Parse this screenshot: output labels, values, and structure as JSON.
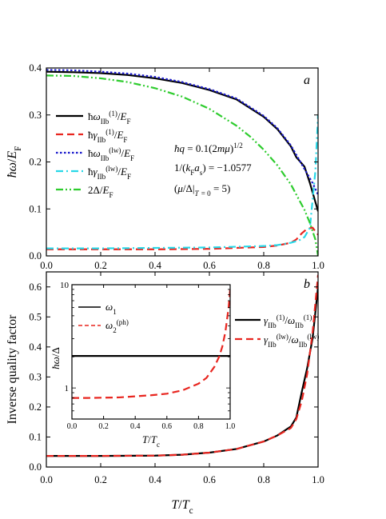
{
  "chart_data": [
    {
      "type": "line",
      "panel_label": "a",
      "xlabel": "",
      "ylabel": "ħω/E_F",
      "xlim": [
        0.0,
        1.0
      ],
      "ylim": [
        0.0,
        0.4
      ],
      "xticks": [
        "0.0",
        "0.2",
        "0.4",
        "0.6",
        "0.8",
        "1.0"
      ],
      "yticks": [
        "0.0",
        "0.1",
        "0.2",
        "0.3",
        "0.4"
      ],
      "annotations": {
        "line1": "ħq = 0.1(2mμ)^1/2",
        "line2": "1/(k_F a_s) = −1.0577",
        "line3": "(μ/Δ|_T=0 = 5)"
      },
      "series": [
        {
          "name": "ħω_IIb^(1)/E_F",
          "color": "#000000",
          "dash": "solid",
          "x": [
            0,
            0.1,
            0.2,
            0.3,
            0.4,
            0.5,
            0.6,
            0.7,
            0.8,
            0.85,
            0.9,
            0.92,
            0.95,
            0.97,
            1.0
          ],
          "y": [
            0.392,
            0.391,
            0.389,
            0.385,
            0.378,
            0.368,
            0.353,
            0.333,
            0.296,
            0.27,
            0.233,
            0.21,
            0.19,
            0.155,
            0.095
          ]
        },
        {
          "name": "ħγ_IIb^(1)/E_F",
          "color": "#e8251f",
          "dash": "dash",
          "x": [
            0,
            0.2,
            0.4,
            0.6,
            0.8,
            0.85,
            0.9,
            0.92,
            0.94,
            0.96,
            0.98,
            1.0
          ],
          "y": [
            0.014,
            0.014,
            0.014,
            0.015,
            0.019,
            0.022,
            0.028,
            0.035,
            0.048,
            0.058,
            0.06,
            0.045
          ]
        },
        {
          "name": "ħω_IIb^(lw)/E_F",
          "color": "#1a1acc",
          "dash": "dot",
          "x": [
            0,
            0.1,
            0.2,
            0.3,
            0.4,
            0.5,
            0.6,
            0.7,
            0.8,
            0.85,
            0.9,
            0.93,
            0.96,
            0.98,
            1.0
          ],
          "y": [
            0.396,
            0.395,
            0.392,
            0.388,
            0.381,
            0.37,
            0.355,
            0.335,
            0.298,
            0.272,
            0.235,
            0.205,
            0.175,
            0.155,
            0.13
          ]
        },
        {
          "name": "ħγ_IIb^(lw)/E_F",
          "color": "#28d8e8",
          "dash": "dashdot",
          "x": [
            0,
            0.2,
            0.4,
            0.6,
            0.8,
            0.85,
            0.9,
            0.93,
            0.95,
            0.97,
            0.99,
            1.0
          ],
          "y": [
            0.016,
            0.016,
            0.017,
            0.018,
            0.021,
            0.023,
            0.028,
            0.033,
            0.04,
            0.06,
            0.18,
            0.3
          ]
        },
        {
          "name": "2Δ/E_F",
          "color": "#2ecc2e",
          "dash": "dashdotdot",
          "x": [
            0,
            0.1,
            0.2,
            0.3,
            0.4,
            0.5,
            0.6,
            0.7,
            0.75,
            0.8,
            0.85,
            0.9,
            0.95,
            0.97,
            0.99,
            1.0
          ],
          "y": [
            0.384,
            0.383,
            0.378,
            0.37,
            0.357,
            0.339,
            0.313,
            0.277,
            0.254,
            0.226,
            0.193,
            0.152,
            0.098,
            0.07,
            0.035,
            0.0
          ]
        }
      ]
    },
    {
      "type": "line",
      "panel_label": "b",
      "xlabel": "T/T_c",
      "ylabel": "Inverse quality factor",
      "xlim": [
        0.0,
        1.0
      ],
      "ylim": [
        0.0,
        0.65
      ],
      "xticks": [
        "0.0",
        "0.2",
        "0.4",
        "0.6",
        "0.8",
        "1.0"
      ],
      "yticks": [
        "0.0",
        "0.1",
        "0.2",
        "0.3",
        "0.4",
        "0.5",
        "0.6"
      ],
      "series": [
        {
          "name": "γ_IIb^(1)/ω_IIb^(1)",
          "color": "#000000",
          "dash": "solid",
          "x": [
            0,
            0.2,
            0.4,
            0.5,
            0.6,
            0.7,
            0.8,
            0.85,
            0.9,
            0.92,
            0.94,
            0.96,
            0.98,
            1.0
          ],
          "y": [
            0.037,
            0.037,
            0.038,
            0.041,
            0.048,
            0.06,
            0.085,
            0.105,
            0.135,
            0.165,
            0.25,
            0.33,
            0.43,
            0.6
          ]
        },
        {
          "name": "γ_IIb^(lw)/ω_IIb^(lw)",
          "color": "#e8251f",
          "dash": "dash",
          "x": [
            0,
            0.2,
            0.4,
            0.5,
            0.6,
            0.7,
            0.8,
            0.85,
            0.9,
            0.92,
            0.94,
            0.96,
            0.98,
            1.0
          ],
          "y": [
            0.037,
            0.037,
            0.038,
            0.041,
            0.048,
            0.06,
            0.085,
            0.105,
            0.13,
            0.16,
            0.22,
            0.31,
            0.45,
            0.64
          ]
        }
      ],
      "inset": {
        "xlabel": "T/T_c",
        "ylabel": "ħω/Δ",
        "yscale": "log",
        "xlim": [
          0.0,
          1.0
        ],
        "ylim": [
          0.5,
          10
        ],
        "xticks": [
          "0.0",
          "0.2",
          "0.4",
          "0.6",
          "0.8",
          "1.0"
        ],
        "yticks": [
          "1",
          "10"
        ],
        "series": [
          {
            "name": "ω_1",
            "color": "#000000",
            "dash": "solid",
            "x": [
              0,
              1.0
            ],
            "y": [
              2.04,
              2.04
            ]
          },
          {
            "name": "ω_2^(ph)",
            "color": "#e8251f",
            "dash": "dash",
            "x": [
              0,
              0.1,
              0.2,
              0.3,
              0.4,
              0.5,
              0.6,
              0.7,
              0.8,
              0.85,
              0.9,
              0.93,
              0.95,
              0.97,
              0.99,
              1.0
            ],
            "y": [
              0.8,
              0.8,
              0.805,
              0.81,
              0.83,
              0.85,
              0.88,
              0.95,
              1.1,
              1.25,
              1.6,
              2.0,
              2.5,
              3.5,
              6.0,
              9.0
            ]
          }
        ]
      }
    }
  ]
}
